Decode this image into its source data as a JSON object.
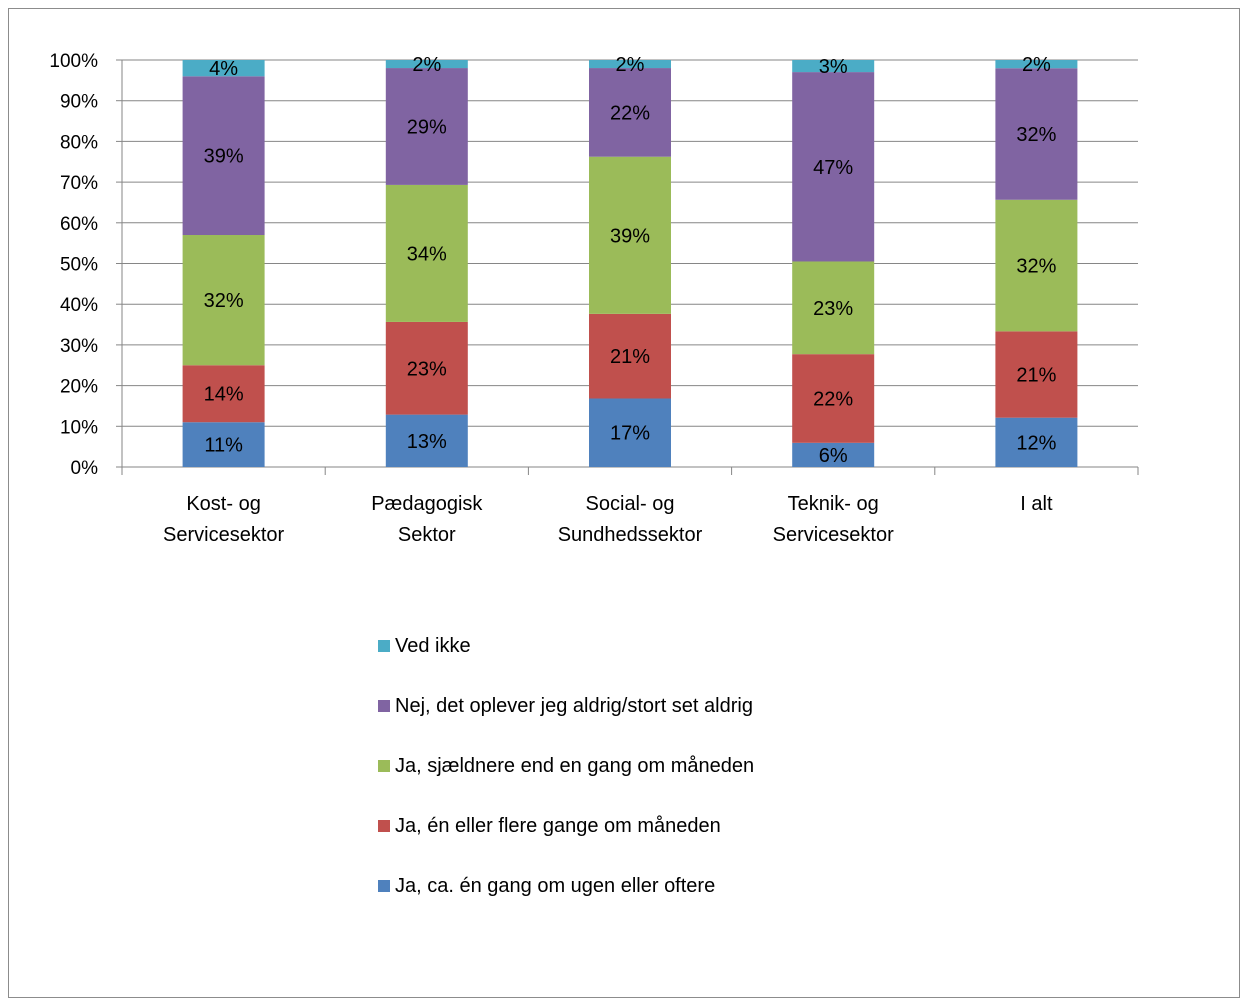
{
  "chart_data": {
    "type": "bar",
    "stacked": true,
    "percent": true,
    "categories": [
      [
        "Kost- og",
        "Servicesektor"
      ],
      [
        "Pædagogisk",
        "Sektor"
      ],
      [
        "Social- og",
        "Sundhedssektor"
      ],
      [
        "Teknik- og",
        "Servicesektor"
      ],
      [
        "I alt"
      ]
    ],
    "ylim": [
      0,
      100
    ],
    "yticks": [
      "0%",
      "10%",
      "20%",
      "30%",
      "40%",
      "50%",
      "60%",
      "70%",
      "80%",
      "90%",
      "100%"
    ],
    "grid": true,
    "legend_position": "bottom",
    "series": [
      {
        "name": "Ja, ca. én gang om ugen eller oftere",
        "color": "#4f81bd",
        "values": [
          11,
          13,
          17,
          6,
          12
        ],
        "labels": [
          "11%",
          "13%",
          "17%",
          "6%",
          "12%"
        ]
      },
      {
        "name": "Ja, én eller flere gange om måneden",
        "color": "#c0504d",
        "values": [
          14,
          23,
          21,
          22,
          21
        ],
        "labels": [
          "14%",
          "23%",
          "21%",
          "22%",
          "21%"
        ]
      },
      {
        "name": "Ja, sjældnere end en gang om måneden",
        "color": "#9bbb59",
        "values": [
          32,
          34,
          39,
          23,
          32
        ],
        "labels": [
          "32%",
          "34%",
          "39%",
          "23%",
          "32%"
        ]
      },
      {
        "name": "Nej, det oplever jeg aldrig/stort set aldrig",
        "color": "#8064a2",
        "values": [
          39,
          29,
          22,
          47,
          32
        ],
        "labels": [
          "39%",
          "29%",
          "22%",
          "47%",
          "32%"
        ]
      },
      {
        "name": "Ved ikke",
        "color": "#4bacc6",
        "values": [
          4,
          2,
          2,
          3,
          2
        ],
        "labels": [
          "4%",
          "2%",
          "2%",
          "3%",
          "2%"
        ]
      }
    ]
  }
}
